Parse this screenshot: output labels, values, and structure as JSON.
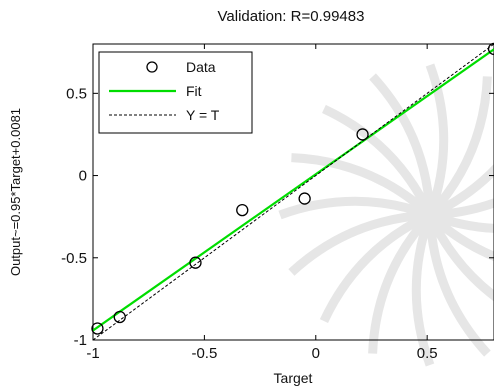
{
  "chart_data": {
    "type": "scatter",
    "title": "Validation: R=0.99483",
    "xlabel": "Target",
    "ylabel": "Output~=0.95*Target+0.0081",
    "xlim": [
      -1,
      0.8
    ],
    "ylim": [
      -1,
      0.8
    ],
    "xticks": [
      -1,
      -0.5,
      0,
      0.5
    ],
    "yticks": [
      -1,
      -0.5,
      0,
      0.5
    ],
    "xtick_labels": [
      "-1",
      "-0.5",
      "0",
      "0.5"
    ],
    "ytick_labels": [
      "-1",
      "-0.5",
      "0",
      "0.5"
    ],
    "grid": false,
    "legend_position": "top-left",
    "series": [
      {
        "name": "Data",
        "kind": "markers",
        "marker": "circle-open",
        "color": "#000000",
        "points": [
          {
            "x": -0.98,
            "y": -0.93
          },
          {
            "x": -0.88,
            "y": -0.86
          },
          {
            "x": -0.54,
            "y": -0.53
          },
          {
            "x": -0.33,
            "y": -0.21
          },
          {
            "x": -0.05,
            "y": -0.14
          },
          {
            "x": 0.21,
            "y": 0.25
          },
          {
            "x": 0.8,
            "y": 0.77
          }
        ]
      },
      {
        "name": "Fit",
        "kind": "line",
        "color": "#00dd00",
        "slope": 0.95,
        "intercept": 0.0081
      },
      {
        "name": "Y = T",
        "kind": "dashed-line",
        "color": "#000000",
        "slope": 1,
        "intercept": 0
      }
    ]
  }
}
